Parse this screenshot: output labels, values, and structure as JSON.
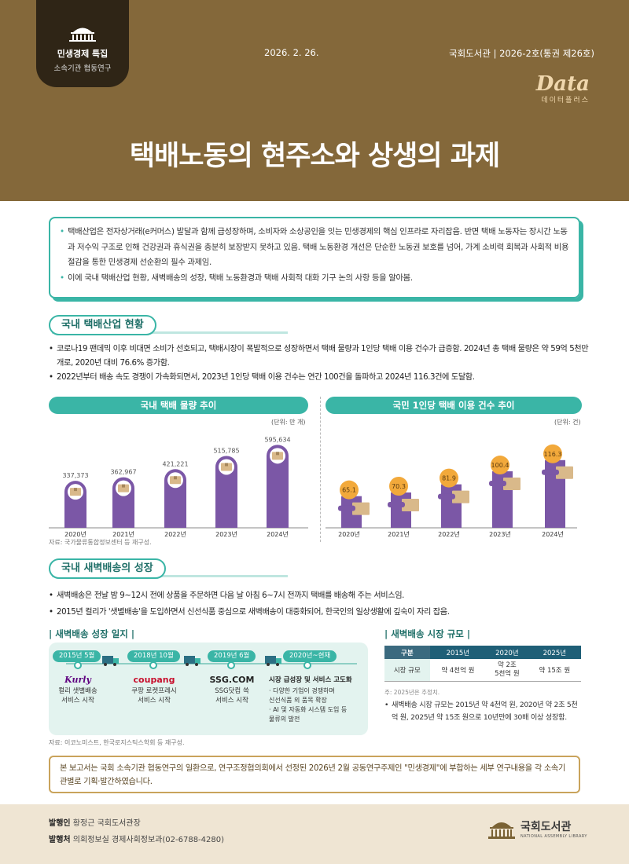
{
  "header": {
    "badge_line1": "민생경제 특집",
    "badge_line2": "소속기관 협동연구",
    "date": "2026. 2. 26.",
    "issue": "국회도서관 | 2026-2호(통권 제26호)",
    "brand": "Data",
    "brand_sub": "데이터플러스",
    "title": "택배노동의 현주소와 상생의 과제",
    "colors": {
      "header_bg": "#84683a",
      "accent": "#3ab5a6",
      "bar": "#7b57a6",
      "box": "#d9b98a"
    }
  },
  "summary": [
    "택배산업은 전자상거래(e커머스) 발달과 함께 급성장하며, 소비자와 소상공인을 잇는 민생경제의 핵심 인프라로 자리잡음. 반면 택배 노동자는 장시간 노동과 저수익 구조로 인해 건강권과 휴식권을 충분히 보장받지 못하고 있음. 택배 노동환경 개선은 단순한 노동권 보호를 넘어, 가계 소비력 회복과 사회적 비용 절감을 통한 민생경제 선순환의 필수 과제임.",
    "이에 국내 택배산업 현황, 새벽배송의 성장, 택배 노동환경과 택배 사회적 대화 기구 논의 사항 등을 알아봄."
  ],
  "section1": {
    "title": "국내 택배산업 현황",
    "bullets": [
      "코로나19 팬데믹 이후 비대면 소비가 선호되고, 택배시장이 폭발적으로 성장하면서 택배 물량과 1인당 택배 이용 건수가 급증함. 2024년 총 택배 물량은 약 59억 5천만 개로, 2020년 대비 76.6% 증가함.",
      "2022년부터 배송 속도 경쟁이 가속화되면서, 2023년 1인당 택배 이용 건수는 연간 100건을 돌파하고 2024년 116.3건에 도달함."
    ],
    "source": "자료: 국가물류통합정보센터 등 재구성."
  },
  "chart_data": [
    {
      "type": "bar",
      "title": "국내 택배 물량 추이",
      "unit": "(단위: 만 개)",
      "categories": [
        "2020년",
        "2021년",
        "2022년",
        "2023년",
        "2024년"
      ],
      "values": [
        337373,
        362967,
        421221,
        515785,
        595634
      ],
      "value_labels": [
        "337,373",
        "362,967",
        "421,221",
        "515,785",
        "595,634"
      ],
      "ylim": [
        0,
        620000
      ]
    },
    {
      "type": "bar",
      "title": "국민 1인당 택배 이용 건수 추이",
      "unit": "(단위: 건)",
      "categories": [
        "2020년",
        "2021년",
        "2022년",
        "2023년",
        "2024년"
      ],
      "values": [
        65.1,
        70.3,
        81.9,
        100.4,
        116.3
      ],
      "value_labels": [
        "65.1",
        "70.3",
        "81.9",
        "100.4",
        "116.3"
      ],
      "ylim": [
        0,
        125
      ]
    }
  ],
  "section2": {
    "title": "국내 새벽배송의 성장",
    "bullets": [
      "새벽배송은 전날 밤 9~12시 전에 상품을 주문하면 다음 날 아침 6~7시 전까지 택배를 배송해 주는 서비스임.",
      "2015년 컬리가 '샛별배송'을 도입하면서 신선식품 중심으로 새벽배송이 대중화되어, 한국인의 일상생활에 깊숙이 자리 잡음."
    ],
    "timeline_title": "| 새벽배송 성장 일지 |",
    "timeline": [
      {
        "year": "2015년 5월",
        "logo": "Kurly",
        "desc": "컬리 샛별배송\n서비스 시작"
      },
      {
        "year": "2018년 10월",
        "logo": "coupang",
        "desc": "쿠팡 로켓프레시\n서비스 시작"
      },
      {
        "year": "2019년 6월",
        "logo": "SSG.COM",
        "desc": "SSG닷컴 쓱\n서비스 시작"
      },
      {
        "year": "2020년~현재",
        "logo": "시장 급성장 및 서비스 고도화",
        "desc": "· 다양한 기업이 경쟁하며\n  신선식품 외 품목 확장\n· AI 및 자동화 시스템 도입 등\n  물류의 발전"
      }
    ],
    "market_title": "| 새벽배송 시장 규모 |",
    "market_headers": [
      "구분",
      "2015년",
      "2020년",
      "2025년"
    ],
    "market_row": [
      "시장 규모",
      "약 4천억 원",
      "약 2조\n5천억 원",
      "약 15조 원"
    ],
    "market_note": "주: 2025년은 추정치.",
    "market_text": "새벽배송 시장 규모는 2015년 약 4천억 원, 2020년 약 2조 5천억 원, 2025년 약 15조 원으로 10년만에 30배 이상 성장함.",
    "source": "자료: 이코노미스트, 한국로지스틱스학회 등 재구성."
  },
  "footnote": "본 보고서는 국회 소속기관 협동연구의 일환으로, 연구조정협의회에서 선정된 2026년 2월 공동연구주제인 \"민생경제\"에 부합하는 세부 연구내용을 각 소속기관별로 기획·발간하였습니다.",
  "footer": {
    "publisher_label": "발행인",
    "publisher": "황정근 국회도서관장",
    "office_label": "발행처",
    "office": "의회정보실 경제사회정보과(02-6788-4280)",
    "org": "국회도서관",
    "org_eng": "NATIONAL ASSEMBLY LIBRARY"
  }
}
